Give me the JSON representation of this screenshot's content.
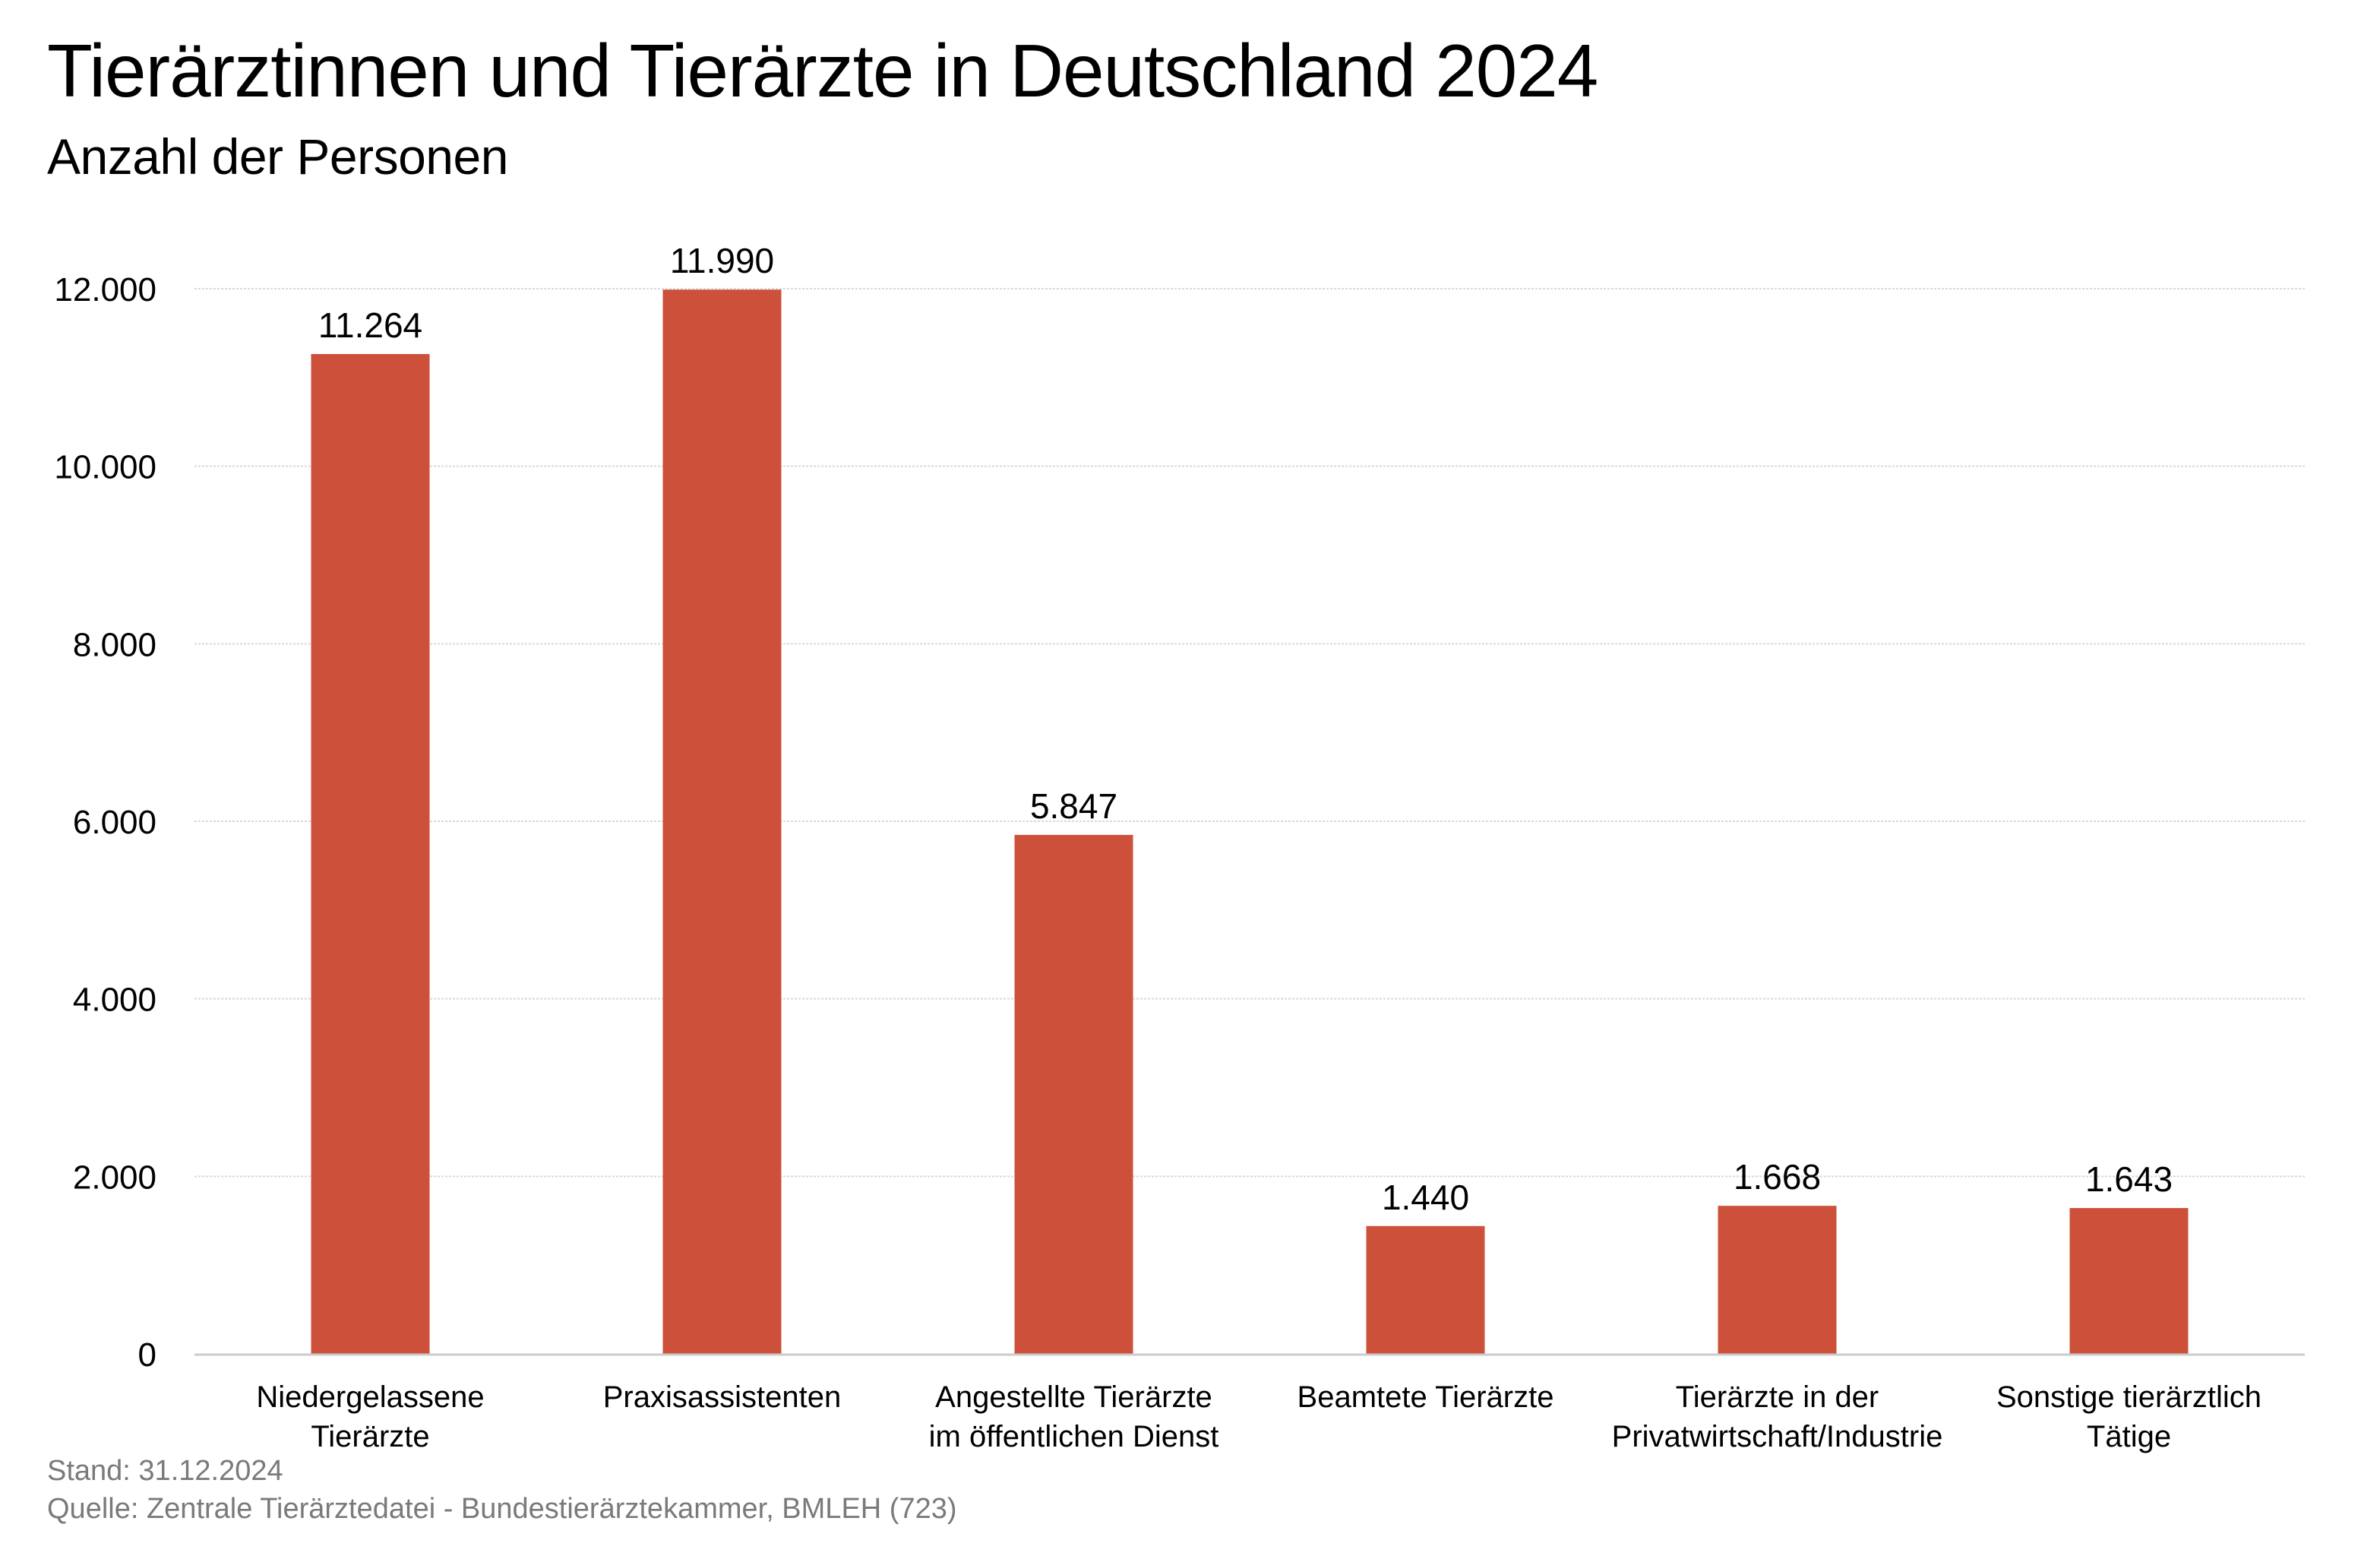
{
  "header": {
    "title": "Tierärztinnen und Tierärzte in Deutschland 2024",
    "subtitle": "Anzahl der Personen"
  },
  "footer": {
    "stand": "Stand: 31.12.2024",
    "source": "Quelle: Zentrale Tierärztedatei - Bundestierärztekammer, BMLEH (723)"
  },
  "colors": {
    "bar": "#cd513a",
    "gridline": "#d9d9d9",
    "axis": "#cccccc",
    "footer_text": "#7a7a7a"
  },
  "chart_data": {
    "type": "bar",
    "title": "Tierärztinnen und Tierärzte in Deutschland 2024",
    "subtitle": "Anzahl der Personen",
    "xlabel": "",
    "ylabel": "",
    "ylim": [
      0,
      12000
    ],
    "yticks": [
      0,
      2000,
      4000,
      6000,
      8000,
      10000,
      12000
    ],
    "ytick_labels": [
      "0",
      "2.000",
      "4.000",
      "6.000",
      "8.000",
      "10.000",
      "12.000"
    ],
    "grid": true,
    "legend": "none",
    "categories": [
      [
        "Niedergelassene",
        "Tierärzte"
      ],
      [
        "Praxisassistenten"
      ],
      [
        "Angestellte Tierärzte",
        "im öffentlichen Dienst"
      ],
      [
        "Beamtete Tierärzte"
      ],
      [
        "Tierärzte in der",
        "Privatwirtschaft/Industrie"
      ],
      [
        "Sonstige tierärztlich",
        "Tätige"
      ]
    ],
    "values": [
      11264,
      11990,
      5847,
      1440,
      1668,
      1643
    ],
    "value_labels": [
      "11.264",
      "11.990",
      "5.847",
      "1.440",
      "1.668",
      "1.643"
    ]
  }
}
